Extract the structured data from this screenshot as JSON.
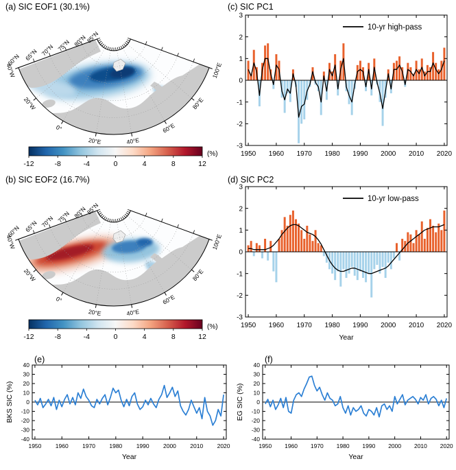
{
  "figure": {
    "panels": {
      "a": {
        "title": "(a) SIC EOF1 (30.1%)"
      },
      "b": {
        "title": "(b) SIC EOF2 (16.7%)"
      }
    }
  },
  "map": {
    "lat_labels": [
      "60°N",
      "65°N",
      "70°N",
      "75°N",
      "80°N",
      "85°N"
    ],
    "lon_labels": [
      "40°W",
      "20°W",
      "0°",
      "20°E",
      "40°E",
      "60°E",
      "80°E",
      "100°E"
    ],
    "colorbar": {
      "ticks": [
        -12,
        -8,
        -4,
        0,
        4,
        8,
        12
      ],
      "unit": "(%)",
      "colors": [
        "#053061",
        "#2166ac",
        "#4393c3",
        "#92c5de",
        "#d1e5f0",
        "#f7f7f7",
        "#fddbc7",
        "#f4a582",
        "#d6604d",
        "#b2182b",
        "#67001f"
      ]
    }
  },
  "colors": {
    "bar_positive": "#e8612c",
    "bar_negative": "#a6d2ea",
    "pc_line": "#000000",
    "sic_line": "#2b7fd4",
    "land": "#cbcbcb"
  },
  "chart_data": [
    {
      "id": "pc1",
      "type": "bar",
      "title": "(c) SIC PC1",
      "x_range": {
        "start": 1950,
        "end": 2020,
        "step": 1
      },
      "bar_values": [
        0.9,
        0.3,
        1.4,
        0.6,
        -1.2,
        0.8,
        1.6,
        1.7,
        0.5,
        -0.4,
        1.2,
        0.9,
        -0.8,
        -1.5,
        -0.6,
        -1.0,
        0.5,
        -0.3,
        -2.9,
        -2.0,
        -1.8,
        -0.9,
        -0.3,
        0.6,
        -0.2,
        -0.5,
        -1.6,
        0.4,
        -0.9,
        0.8,
        0.4,
        1.2,
        -0.7,
        0.9,
        1.7,
        -0.5,
        -1.1,
        -1.6,
        -0.4,
        0.7,
        0.9,
        0.6,
        -0.5,
        0.8,
        -0.7,
        1.0,
        -0.2,
        -1.0,
        -2.1,
        -0.8,
        0.5,
        -0.6,
        0.8,
        0.9,
        1.1,
        0.6,
        -0.3,
        0.8,
        0.6,
        0.3,
        0.9,
        0.5,
        1.0,
        0.4,
        0.7,
        0.6,
        1.3,
        0.8,
        0.5,
        0.9,
        1.5
      ],
      "line": {
        "name": "10-yr high-pass",
        "values": [
          0.5,
          0.2,
          0.8,
          0.4,
          -0.7,
          0.5,
          1.0,
          1.0,
          0.3,
          -0.2,
          0.7,
          0.5,
          -0.5,
          -0.9,
          -0.4,
          -0.6,
          0.3,
          -0.2,
          -1.7,
          -1.2,
          -1.1,
          -0.5,
          -0.2,
          0.4,
          -0.1,
          -0.3,
          -1.0,
          0.2,
          -0.5,
          0.5,
          0.2,
          0.7,
          -0.4,
          0.5,
          1.0,
          -0.3,
          -0.7,
          -1.0,
          -0.2,
          0.4,
          0.5,
          0.4,
          -0.3,
          0.5,
          -0.4,
          0.6,
          -0.1,
          -0.6,
          -1.3,
          -0.5,
          0.3,
          -0.4,
          0.5,
          0.5,
          0.7,
          0.4,
          -0.2,
          0.5,
          0.4,
          0.2,
          0.5,
          0.3,
          0.6,
          0.2,
          0.4,
          0.4,
          0.8,
          0.5,
          0.3,
          0.5,
          0.9
        ]
      },
      "ylim": [
        -3,
        3
      ],
      "yticks": [
        -3,
        -2,
        -1,
        0,
        1,
        2,
        3
      ],
      "xticks": [
        1950,
        1960,
        1970,
        1980,
        1990,
        2000,
        2010,
        2020
      ]
    },
    {
      "id": "pc2",
      "type": "bar",
      "title": "(d) SIC PC2",
      "x_range": {
        "start": 1950,
        "end": 2020,
        "step": 1
      },
      "bar_values": [
        0.3,
        0.5,
        -0.2,
        0.4,
        0.3,
        -0.3,
        0.6,
        -0.4,
        0.5,
        -0.9,
        -1.4,
        0.6,
        1.0,
        1.6,
        1.2,
        1.7,
        1.9,
        1.5,
        1.3,
        1.0,
        0.6,
        1.2,
        0.8,
        0.5,
        1.0,
        0.4,
        0.3,
        -0.2,
        -0.5,
        -0.8,
        -1.0,
        -1.3,
        -0.9,
        -1.6,
        -0.8,
        -1.2,
        -1.0,
        -0.7,
        -1.1,
        -1.3,
        -0.9,
        -1.2,
        -1.4,
        -1.0,
        -2.1,
        -0.8,
        -0.6,
        -1.0,
        -0.7,
        -1.2,
        -0.5,
        -0.8,
        -0.3,
        0.4,
        -0.4,
        0.6,
        0.5,
        0.9,
        0.8,
        0.4,
        1.0,
        0.8,
        1.4,
        0.6,
        1.1,
        1.5,
        1.2,
        0.9,
        1.3,
        1.0,
        1.9
      ],
      "line": {
        "name": "10-yr low-pass",
        "values": [
          0.15,
          0.15,
          0.1,
          0.1,
          0.1,
          0.1,
          0.1,
          0.15,
          0.2,
          0.3,
          0.45,
          0.6,
          0.8,
          0.95,
          1.1,
          1.2,
          1.25,
          1.25,
          1.2,
          1.1,
          1.0,
          0.9,
          0.85,
          0.8,
          0.7,
          0.55,
          0.35,
          0.1,
          -0.15,
          -0.4,
          -0.6,
          -0.75,
          -0.85,
          -0.9,
          -0.9,
          -0.85,
          -0.8,
          -0.75,
          -0.75,
          -0.8,
          -0.85,
          -0.9,
          -0.95,
          -1.0,
          -1.0,
          -0.95,
          -0.9,
          -0.85,
          -0.8,
          -0.75,
          -0.65,
          -0.5,
          -0.35,
          -0.2,
          -0.05,
          0.1,
          0.25,
          0.4,
          0.5,
          0.6,
          0.7,
          0.8,
          0.9,
          1.0,
          1.05,
          1.1,
          1.15,
          1.15,
          1.15,
          1.2,
          1.25
        ]
      },
      "ylim": [
        -3,
        3
      ],
      "yticks": [
        -3,
        -2,
        -1,
        0,
        1,
        2,
        3
      ],
      "xticks": [
        1950,
        1960,
        1970,
        1980,
        1990,
        2000,
        2010,
        2020
      ],
      "xlabel": "Year"
    },
    {
      "id": "bks",
      "type": "line",
      "panel_label": "(e)",
      "ylabel": "BKS SIC (%)",
      "x_range": {
        "start": 1950,
        "end": 2020,
        "step": 1
      },
      "values": [
        2,
        -3,
        4,
        -6,
        -2,
        3,
        -4,
        5,
        -8,
        2,
        -5,
        3,
        8,
        -2,
        5,
        -3,
        10,
        4,
        14,
        6,
        2,
        -4,
        -6,
        3,
        -2,
        4,
        8,
        -3,
        5,
        15,
        10,
        13,
        2,
        -5,
        3,
        -4,
        6,
        10,
        -2,
        -8,
        -5,
        2,
        -3,
        4,
        -2,
        -6,
        3,
        8,
        18,
        5,
        10,
        16,
        6,
        12,
        -4,
        -10,
        -14,
        -8,
        2,
        -5,
        -12,
        -6,
        -18,
        5,
        -10,
        -15,
        -25,
        -20,
        -8,
        -15,
        8
      ],
      "ylim": [
        -40,
        40
      ],
      "yticks": [
        -40,
        -30,
        -20,
        -10,
        0,
        10,
        20,
        30,
        40
      ],
      "xticks": [
        1950,
        1960,
        1970,
        1980,
        1990,
        2000,
        2010,
        2020
      ],
      "xlabel": "Year"
    },
    {
      "id": "eg",
      "type": "line",
      "panel_label": "(f)",
      "ylabel": "EG SIC (%)",
      "x_range": {
        "start": 1950,
        "end": 2020,
        "step": 1
      },
      "values": [
        -2,
        3,
        -5,
        2,
        -8,
        -3,
        4,
        -6,
        5,
        -10,
        -12,
        2,
        8,
        10,
        6,
        14,
        20,
        27,
        28,
        18,
        12,
        16,
        8,
        2,
        10,
        4,
        2,
        -4,
        -2,
        6,
        -6,
        -12,
        -4,
        -14,
        -6,
        -10,
        -8,
        -4,
        -12,
        -15,
        -8,
        -10,
        -14,
        -6,
        -16,
        -4,
        -2,
        -8,
        -4,
        -10,
        6,
        -2,
        3,
        8,
        -3,
        2,
        4,
        6,
        3,
        -2,
        5,
        2,
        8,
        -2,
        4,
        6,
        3,
        -4,
        2,
        -6,
        4
      ],
      "ylim": [
        -40,
        40
      ],
      "yticks": [
        -40,
        -30,
        -20,
        -10,
        0,
        10,
        20,
        30,
        40
      ],
      "xticks": [
        1950,
        1960,
        1970,
        1980,
        1990,
        2000,
        2010,
        2020
      ],
      "xlabel": "Year"
    }
  ]
}
